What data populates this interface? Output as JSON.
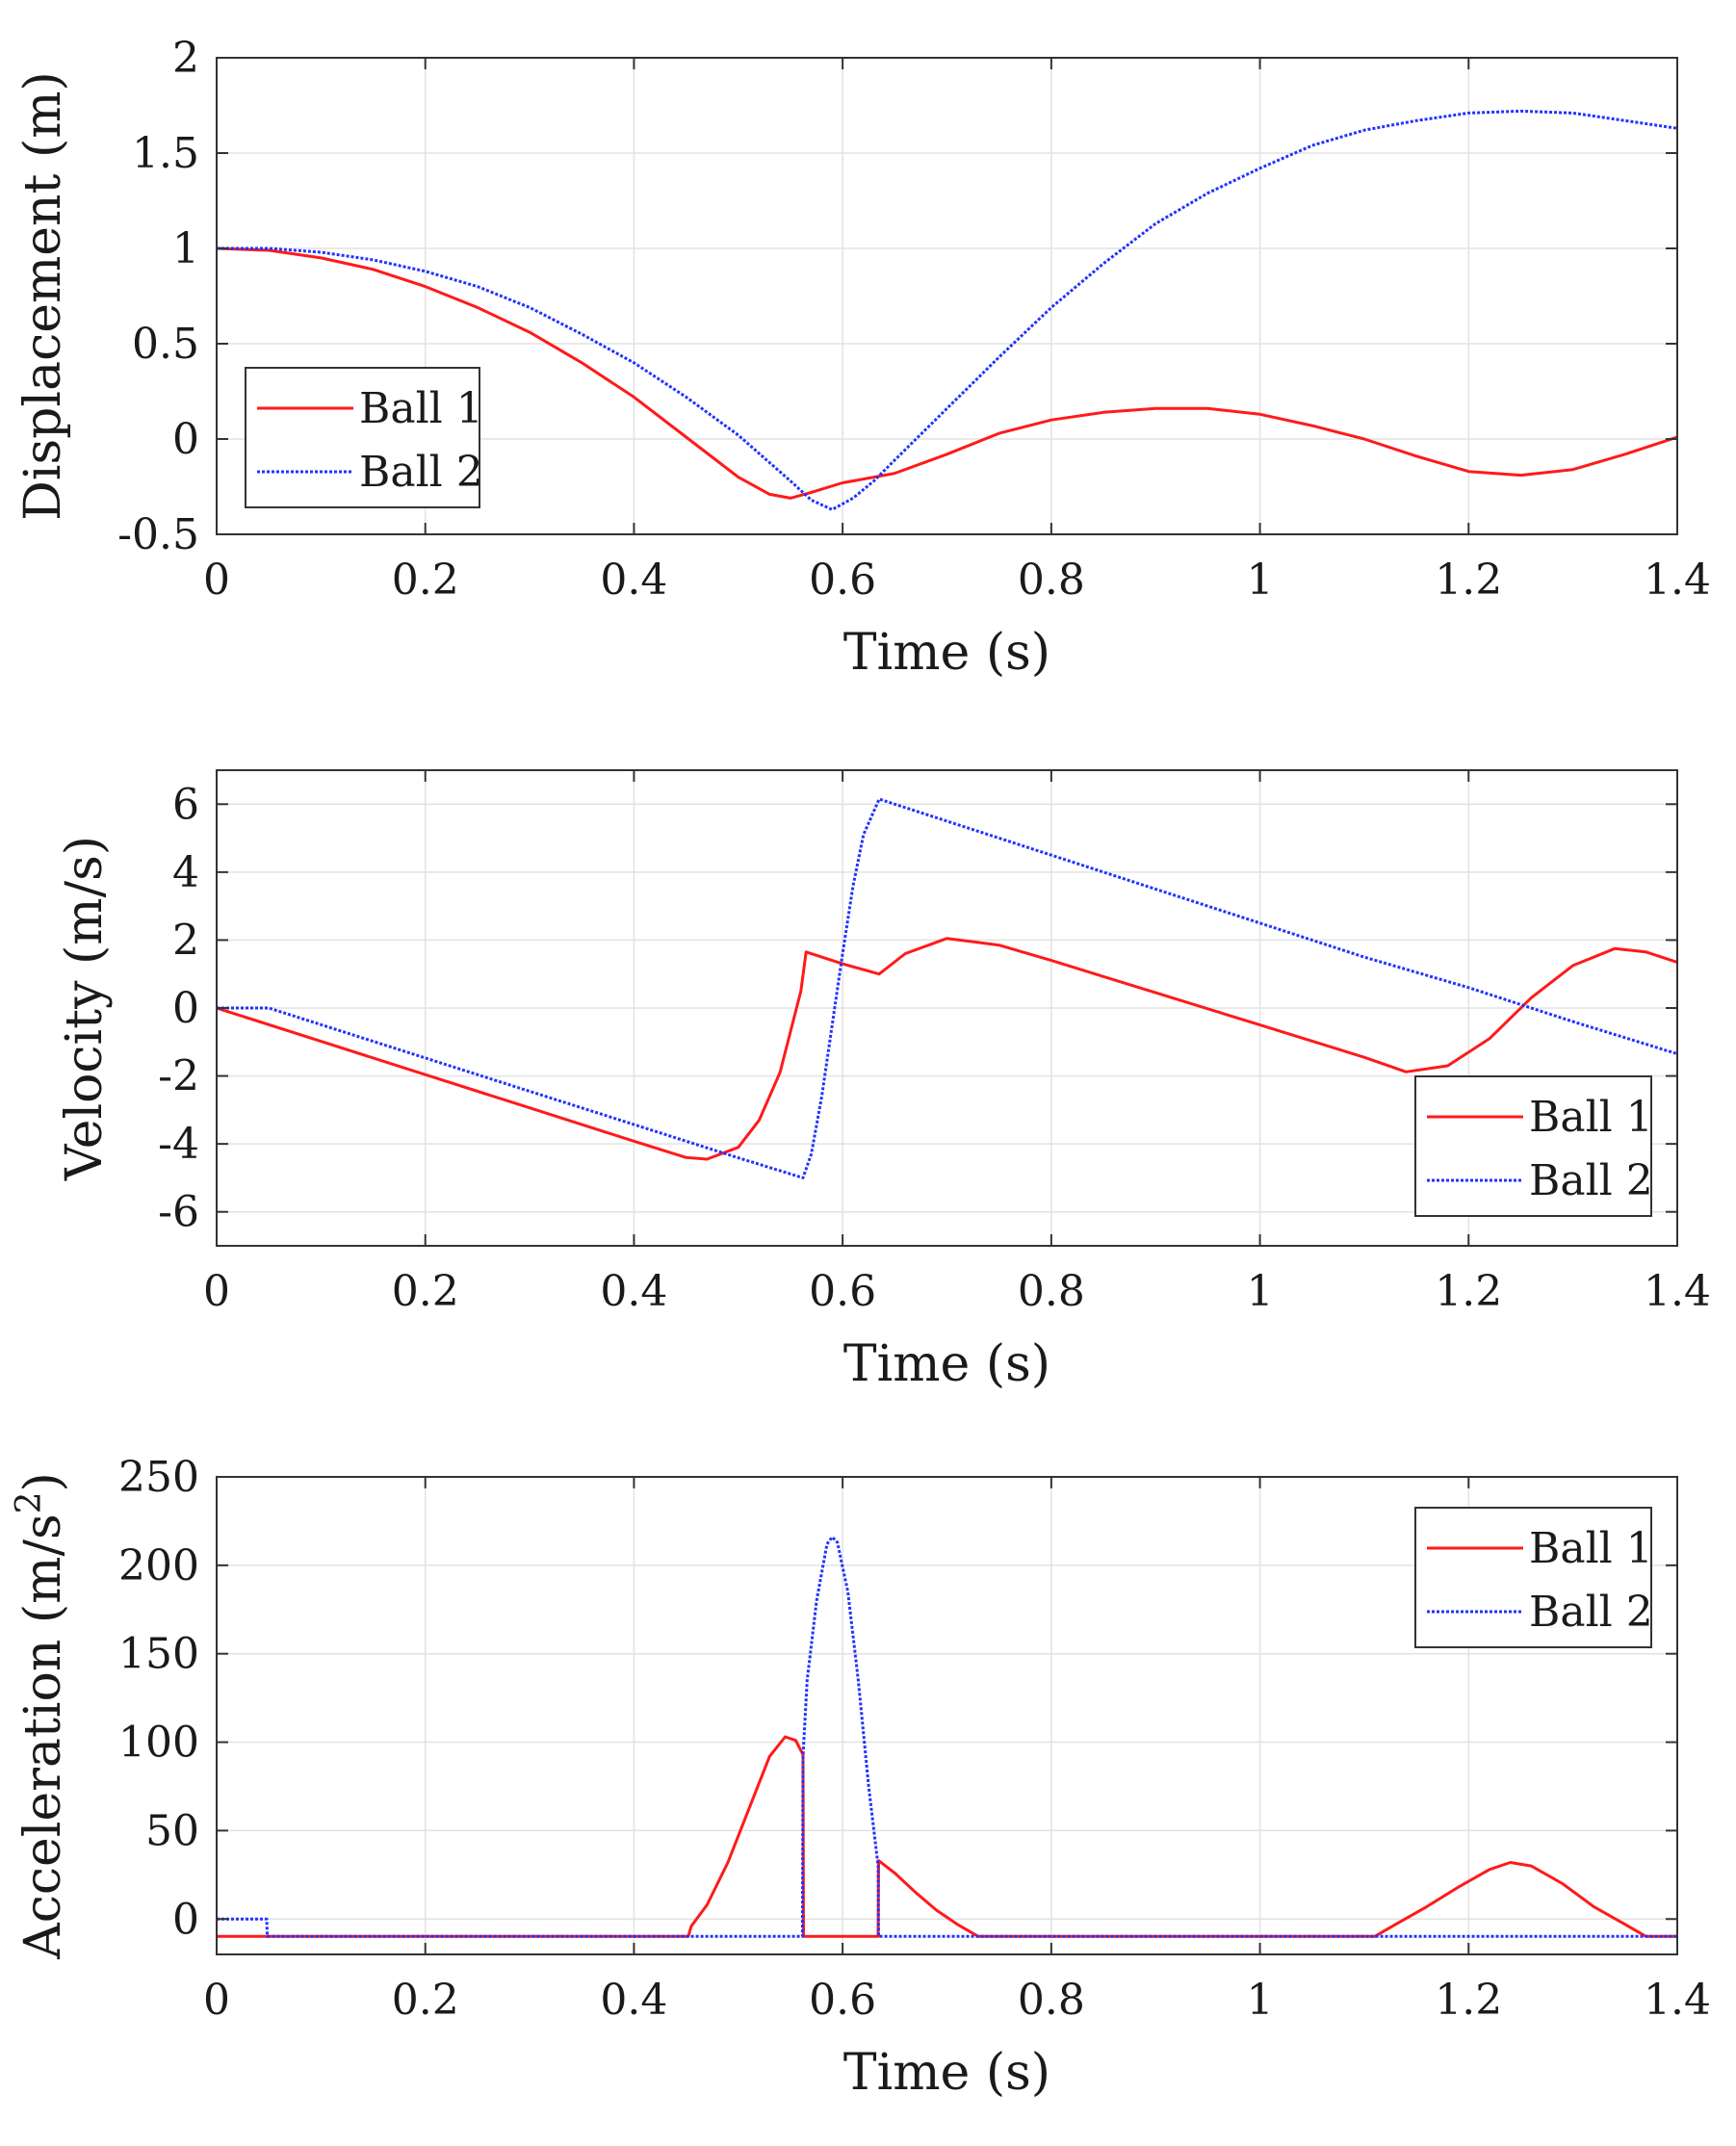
{
  "legend_labels": [
    "Ball 1",
    "Ball 2"
  ],
  "colors": {
    "ball1": "#ff1a1a",
    "ball2": "#2233ff",
    "grid": "#e2e2e2",
    "axis": "#333333"
  },
  "chart_data": [
    {
      "type": "line",
      "xlabel": "Time (s)",
      "ylabel": "Displacement (m)",
      "xlim": [
        0,
        1.4
      ],
      "ylim": [
        -0.5,
        2
      ],
      "xticks": [
        0,
        0.2,
        0.4,
        0.6,
        0.8,
        1,
        1.2,
        1.4
      ],
      "xtick_labels": [
        "0",
        "0.2",
        "0.4",
        "0.6",
        "0.8",
        "1",
        "1.2",
        "1.4"
      ],
      "yticks": [
        -0.5,
        0,
        0.5,
        1,
        1.5,
        2
      ],
      "ytick_labels": [
        "-0.5",
        "0",
        "0.5",
        "1",
        "1.5",
        "2"
      ],
      "grid": true,
      "legend_position": "bottom-left",
      "series": [
        {
          "name": "Ball 1",
          "x": [
            0,
            0.05,
            0.1,
            0.15,
            0.2,
            0.25,
            0.3,
            0.35,
            0.4,
            0.45,
            0.5,
            0.53,
            0.55,
            0.57,
            0.6,
            0.63,
            0.65,
            0.7,
            0.75,
            0.8,
            0.85,
            0.9,
            0.95,
            1.0,
            1.05,
            1.1,
            1.15,
            1.2,
            1.25,
            1.3,
            1.35,
            1.4
          ],
          "y": [
            1.0,
            0.99,
            0.95,
            0.89,
            0.8,
            0.69,
            0.56,
            0.4,
            0.22,
            0.01,
            -0.2,
            -0.29,
            -0.31,
            -0.28,
            -0.23,
            -0.2,
            -0.18,
            -0.08,
            0.03,
            0.1,
            0.14,
            0.16,
            0.16,
            0.13,
            0.07,
            0.0,
            -0.09,
            -0.17,
            -0.19,
            -0.16,
            -0.08,
            0.01
          ]
        },
        {
          "name": "Ball 2",
          "x": [
            0,
            0.05,
            0.1,
            0.15,
            0.2,
            0.25,
            0.3,
            0.35,
            0.4,
            0.45,
            0.5,
            0.55,
            0.57,
            0.59,
            0.61,
            0.63,
            0.65,
            0.7,
            0.75,
            0.8,
            0.85,
            0.9,
            0.95,
            1.0,
            1.05,
            1.1,
            1.15,
            1.2,
            1.25,
            1.3,
            1.35,
            1.4
          ],
          "y": [
            1.0,
            1.0,
            0.98,
            0.94,
            0.88,
            0.8,
            0.69,
            0.55,
            0.4,
            0.22,
            0.02,
            -0.22,
            -0.32,
            -0.37,
            -0.31,
            -0.22,
            -0.11,
            0.16,
            0.43,
            0.69,
            0.92,
            1.13,
            1.29,
            1.42,
            1.54,
            1.62,
            1.67,
            1.71,
            1.72,
            1.71,
            1.67,
            1.63
          ]
        }
      ]
    },
    {
      "type": "line",
      "xlabel": "Time (s)",
      "ylabel": "Velocity (m/s)",
      "xlim": [
        0,
        1.4
      ],
      "ylim": [
        -7,
        7
      ],
      "xticks": [
        0,
        0.2,
        0.4,
        0.6,
        0.8,
        1,
        1.2,
        1.4
      ],
      "xtick_labels": [
        "0",
        "0.2",
        "0.4",
        "0.6",
        "0.8",
        "1",
        "1.2",
        "1.4"
      ],
      "yticks": [
        -6,
        -4,
        -2,
        0,
        2,
        4,
        6
      ],
      "ytick_labels": [
        "-6",
        "-4",
        "-2",
        "0",
        "2",
        "4",
        "6"
      ],
      "grid": true,
      "legend_position": "bottom-right",
      "series": [
        {
          "name": "Ball 1",
          "x": [
            0,
            0.1,
            0.2,
            0.3,
            0.4,
            0.45,
            0.47,
            0.5,
            0.52,
            0.54,
            0.56,
            0.565,
            0.6,
            0.635,
            0.66,
            0.7,
            0.75,
            0.8,
            0.9,
            1.0,
            1.1,
            1.14,
            1.18,
            1.22,
            1.26,
            1.3,
            1.34,
            1.37,
            1.4
          ],
          "y": [
            0,
            -0.98,
            -1.96,
            -2.94,
            -3.92,
            -4.4,
            -4.45,
            -4.1,
            -3.3,
            -1.9,
            0.5,
            1.65,
            1.3,
            1.0,
            1.6,
            2.05,
            1.85,
            1.4,
            0.45,
            -0.5,
            -1.45,
            -1.88,
            -1.7,
            -0.9,
            0.3,
            1.25,
            1.75,
            1.65,
            1.35
          ]
        },
        {
          "name": "Ball 2",
          "x": [
            0,
            0.05,
            0.1,
            0.2,
            0.3,
            0.4,
            0.5,
            0.562,
            0.57,
            0.58,
            0.59,
            0.6,
            0.61,
            0.62,
            0.635,
            0.7,
            0.8,
            0.9,
            1.0,
            1.1,
            1.2,
            1.3,
            1.4
          ],
          "y": [
            0,
            0,
            -0.49,
            -1.47,
            -2.45,
            -3.43,
            -4.41,
            -5.0,
            -4.3,
            -2.6,
            -0.5,
            1.6,
            3.6,
            5.1,
            6.15,
            5.5,
            4.5,
            3.5,
            2.5,
            1.5,
            0.6,
            -0.4,
            -1.35
          ]
        }
      ]
    },
    {
      "type": "line",
      "xlabel": "Time (s)",
      "ylabel": "Acceleration (m/s",
      "ylabel_superscript": "2",
      "ylabel_suffix": ")",
      "xlim": [
        0,
        1.4
      ],
      "ylim": [
        -20,
        250
      ],
      "xticks": [
        0,
        0.2,
        0.4,
        0.6,
        0.8,
        1,
        1.2,
        1.4
      ],
      "xtick_labels": [
        "0",
        "0.2",
        "0.4",
        "0.6",
        "0.8",
        "1",
        "1.2",
        "1.4"
      ],
      "yticks": [
        0,
        50,
        100,
        150,
        200,
        250
      ],
      "ytick_labels": [
        "0",
        "50",
        "100",
        "150",
        "200",
        "250"
      ],
      "grid": true,
      "legend_position": "top-right",
      "series": [
        {
          "name": "Ball 1",
          "x": [
            0,
            0.452,
            0.455,
            0.47,
            0.49,
            0.51,
            0.53,
            0.545,
            0.555,
            0.562,
            0.5625,
            0.634,
            0.6345,
            0.65,
            0.67,
            0.69,
            0.71,
            0.73,
            1.11,
            1.13,
            1.16,
            1.19,
            1.22,
            1.24,
            1.26,
            1.29,
            1.32,
            1.35,
            1.37,
            1.4
          ],
          "y": [
            -9.81,
            -9.81,
            -4,
            8,
            32,
            62,
            92,
            103,
            101,
            93,
            -9.81,
            -9.81,
            33,
            26,
            15,
            5,
            -3,
            -9.81,
            -9.81,
            -3,
            7,
            18,
            28,
            32,
            30,
            20,
            7,
            -3,
            -9.81,
            -9.81
          ]
        },
        {
          "name": "Ball 2",
          "x": [
            0,
            0.048,
            0.0485,
            0.5615,
            0.562,
            0.566,
            0.575,
            0.585,
            0.59,
            0.595,
            0.605,
            0.615,
            0.625,
            0.634,
            0.6345,
            1.4
          ],
          "y": [
            0,
            0,
            -9.81,
            -9.81,
            92,
            135,
            180,
            212,
            216,
            213,
            185,
            135,
            75,
            30,
            -9.81,
            -9.81
          ]
        }
      ]
    }
  ]
}
